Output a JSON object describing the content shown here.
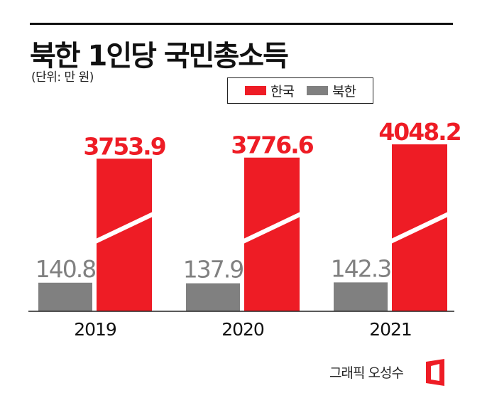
{
  "header": {
    "title": "북한 1인당 국민총소득",
    "unit": "(단위: 만 원)"
  },
  "legend": [
    {
      "label": "한국",
      "color": "#ee1c25"
    },
    {
      "label": "북한",
      "color": "#808080"
    }
  ],
  "chart_data": {
    "type": "bar",
    "categories": [
      "2019",
      "2020",
      "2021"
    ],
    "series": [
      {
        "name": "북한",
        "values": [
          140.8,
          137.9,
          142.3
        ],
        "labels": [
          "140.8",
          "137.9",
          "142.3"
        ],
        "color": "#808080"
      },
      {
        "name": "한국",
        "values": [
          3753.9,
          3776.6,
          4048.2
        ],
        "labels": [
          "3753.9",
          "3776.6",
          "4048.2"
        ],
        "color": "#ee1c25"
      }
    ],
    "axis_break": true,
    "grid": false,
    "legend_position": "top-right"
  },
  "footer": {
    "credit": "그래픽 오성수",
    "logo_color": "#ee1c25"
  }
}
